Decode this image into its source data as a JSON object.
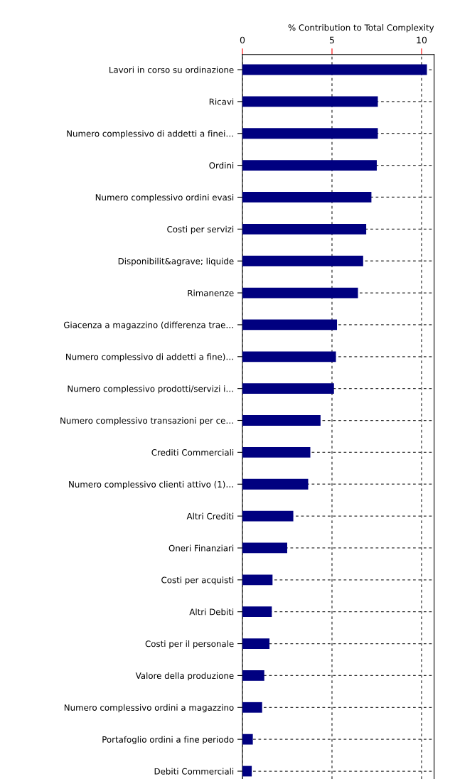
{
  "chart_data": {
    "type": "bar",
    "orientation": "horizontal",
    "xlabel": "% Contribution to Total Complexity",
    "categories": [
      "Lavori in corso su ordinazione",
      "Ricavi",
      "Numero complessivo di addetti a finei…",
      "Ordini",
      "Numero complessivo ordini evasi",
      "Costi per servizi",
      "Disponibilit&agrave; liquide",
      "Rimanenze",
      "Giacenza a magazzino (differenza trae…",
      "Numero complessivo di addetti a fine)…",
      "Numero complessivo prodotti/servizi i…",
      "Numero complessivo transazioni per ce…",
      "Crediti Commerciali",
      "Numero complessivo clienti attivo (1)…",
      "Altri Crediti",
      "Oneri Finanziari",
      "Costi per acquisti",
      "Altri Debiti",
      "Costi per il personale",
      "Valore della produzione",
      "Numero complessivo ordini a magazzino",
      "Portafoglio ordini a fine periodo",
      "Debiti Commerciali"
    ],
    "values": [
      10.3,
      7.56,
      7.56,
      7.5,
      7.2,
      6.91,
      6.74,
      6.45,
      5.28,
      5.22,
      5.11,
      4.36,
      3.79,
      3.67,
      2.84,
      2.5,
      1.68,
      1.64,
      1.51,
      1.22,
      1.1,
      0.58,
      0.52
    ],
    "color": "#000080",
    "xlim": [
      0,
      10.7
    ],
    "xticks": [
      0,
      5,
      10
    ],
    "grid": true
  }
}
